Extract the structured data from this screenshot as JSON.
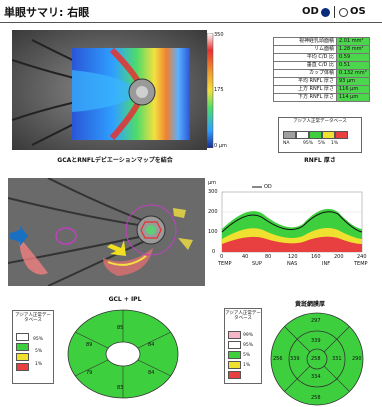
{
  "header": {
    "title": "単眼サマリ: 右眼",
    "od_label": "OD",
    "os_label": "OS",
    "od_color": "#0a2a7a"
  },
  "top_map": {
    "caption": "GCAとRNFLデビエーションマップを結合",
    "scale_labels": [
      "350",
      "175",
      "0 µm"
    ]
  },
  "rnfl_table": {
    "rows": [
      {
        "label": "視神経乳頭面積",
        "value": "2.01 mm²"
      },
      {
        "label": "リム面積",
        "value": "1.28 mm²"
      },
      {
        "label": "平均 C/D 比",
        "value": "0.59"
      },
      {
        "label": "垂直 C/D 比",
        "value": "0.51"
      },
      {
        "label": "カップ体積",
        "value": "0.132 mm³"
      },
      {
        "label": "平均 RNFL 厚さ",
        "value": "93 µm"
      },
      {
        "label": "上方 RNFL 厚さ",
        "value": "116 µm"
      },
      {
        "label": "下方 RNFL 厚さ",
        "value": "114 µm"
      }
    ],
    "legend_title": "アジア人正常データベース",
    "legend_items": [
      "NA",
      "95%",
      "5%",
      "1%"
    ],
    "legend_colors": [
      "#a0a0a0",
      "#ffffff",
      "#3ecf3e",
      "#f0e030",
      "#e84040"
    ],
    "caption": "RNFL 厚さ"
  },
  "tsnit": {
    "y_unit": "µm",
    "legend_od": "OD",
    "y_ticks": [
      "300",
      "200",
      "100",
      "0"
    ],
    "x_ticks": [
      "0",
      "40",
      "80",
      "120",
      "160",
      "200",
      "240"
    ],
    "x_labels": [
      "TEMP",
      "SUP",
      "NAS",
      "INF",
      "TEMP"
    ]
  },
  "gcl": {
    "caption": "GCL + IPL",
    "legend_title": "アジア人正常データベース",
    "legend_items": [
      "95%",
      "5%",
      "1%"
    ],
    "legend_colors": [
      "#ffffff",
      "#3ecf3e",
      "#f0e030",
      "#e84040"
    ],
    "sectors": [
      "85",
      "84",
      "84",
      "83",
      "79",
      "89"
    ]
  },
  "etdrs": {
    "caption": "黄斑網膜厚",
    "legend_title": "アジア人正常データベース",
    "legend_items": [
      "99%",
      "95%",
      "5%",
      "1%"
    ],
    "legend_colors": [
      "#f6b6c8",
      "#ffffff",
      "#3ecf3e",
      "#f0e030",
      "#e84040"
    ],
    "outer": [
      "297",
      "290",
      "258",
      "256"
    ],
    "inner": [
      "339",
      "331",
      "334",
      "339"
    ],
    "center": "258"
  }
}
